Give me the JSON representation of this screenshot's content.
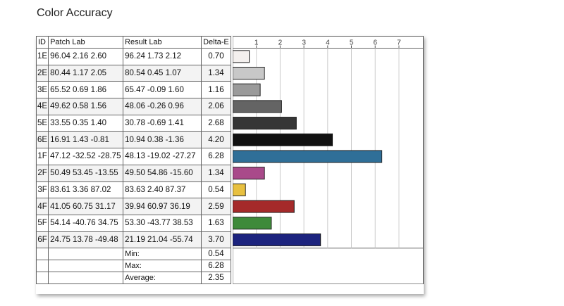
{
  "title": "Color Accuracy",
  "headers": {
    "id": "ID",
    "patch": "Patch Lab",
    "result": "Result Lab",
    "delta": "Delta-E"
  },
  "rows": [
    {
      "id": "1E",
      "patch": "96.04  2.16  2.60",
      "result": "96.24  1.73  2.12",
      "delta": "0.70"
    },
    {
      "id": "2E",
      "patch": "80.44  1.17  2.05",
      "result": "80.54  0.45  1.07",
      "delta": "1.34"
    },
    {
      "id": "3E",
      "patch": "65.52  0.69  1.86",
      "result": "65.47  -0.09  1.60",
      "delta": "1.16"
    },
    {
      "id": "4E",
      "patch": "49.62  0.58  1.56",
      "result": "48.06  -0.26  0.96",
      "delta": "2.06"
    },
    {
      "id": "5E",
      "patch": "33.55  0.35  1.40",
      "result": "30.78  -0.69  1.41",
      "delta": "2.68"
    },
    {
      "id": "6E",
      "patch": "16.91  1.43  -0.81",
      "result": "10.94  0.38  -1.36",
      "delta": "4.20"
    },
    {
      "id": "1F",
      "patch": "47.12 -32.52 -28.75",
      "result": "48.13 -19.02 -27.27",
      "delta": "6.28"
    },
    {
      "id": "2F",
      "patch": "50.49 53.45 -13.55",
      "result": "49.50 54.86 -15.60",
      "delta": "1.34"
    },
    {
      "id": "3F",
      "patch": "83.61  3.36 87.02",
      "result": "83.63  2.40 87.37",
      "delta": "0.54"
    },
    {
      "id": "4F",
      "patch": "41.05 60.75 31.17",
      "result": "39.94 60.97 36.19",
      "delta": "2.59"
    },
    {
      "id": "5F",
      "patch": "54.14 -40.76 34.75",
      "result": "53.30 -43.77 38.53",
      "delta": "1.63"
    },
    {
      "id": "6F",
      "patch": "24.75 13.78 -49.48",
      "result": "21.19 21.04 -55.74",
      "delta": "3.70"
    }
  ],
  "summary": {
    "min_label": "Min:",
    "min_value": "0.54",
    "max_label": "Max:",
    "max_value": "6.28",
    "avg_label": "Average:",
    "avg_value": "2.35"
  },
  "chart_data": {
    "type": "bar",
    "orientation": "horizontal",
    "categories": [
      "1E",
      "2E",
      "3E",
      "4E",
      "5E",
      "6E",
      "1F",
      "2F",
      "3F",
      "4F",
      "5F",
      "6F"
    ],
    "values": [
      0.7,
      1.34,
      1.16,
      2.06,
      2.68,
      4.2,
      6.28,
      1.34,
      0.54,
      2.59,
      1.63,
      3.7
    ],
    "colors": [
      "#f4f0ee",
      "#c8c8c8",
      "#9a9a9a",
      "#646464",
      "#363636",
      "#111111",
      "#2f6f98",
      "#a94a8a",
      "#e8c040",
      "#a52a2a",
      "#3e8a3a",
      "#1c237e"
    ],
    "xticks": [
      1,
      2,
      3,
      4,
      5,
      6,
      7
    ],
    "xlim": [
      0,
      8
    ],
    "grid": true
  }
}
